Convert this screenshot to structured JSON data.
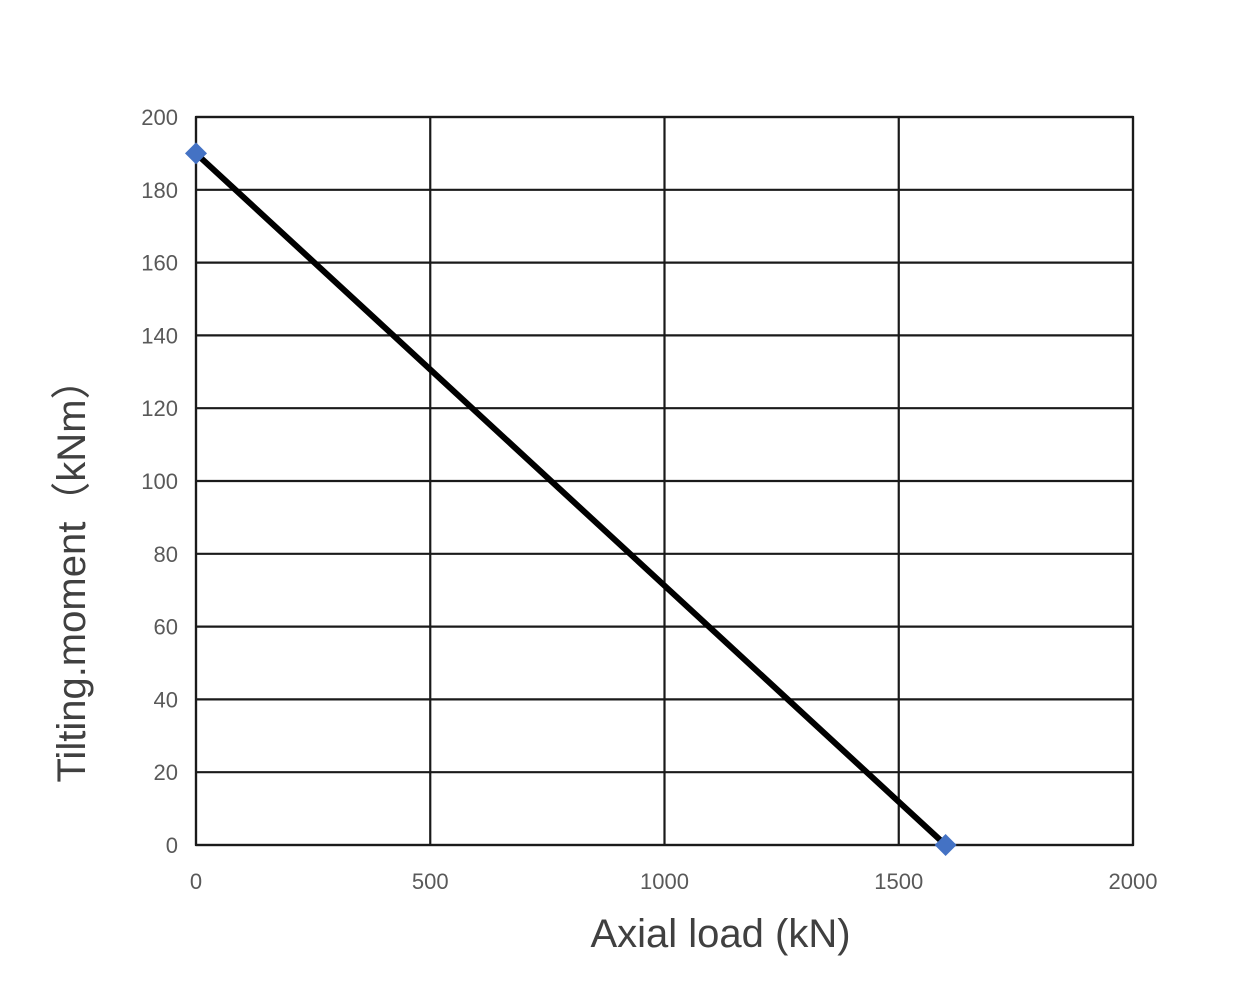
{
  "chart_data": {
    "type": "line",
    "title": "",
    "xlabel": "Axial load (kN)",
    "ylabel": "Tilting.moment（kNm）",
    "xlim": [
      0,
      2000
    ],
    "ylim": [
      0,
      200
    ],
    "x_ticks": [
      0,
      500,
      1000,
      1500,
      2000
    ],
    "y_ticks": [
      0,
      20,
      40,
      60,
      80,
      100,
      120,
      140,
      160,
      180,
      200
    ],
    "x_tick_labels": [
      "0",
      "500",
      "1000",
      "1500",
      "2000"
    ],
    "y_tick_labels": [
      "0",
      "20",
      "40",
      "60",
      "80",
      "100",
      "120",
      "140",
      "160",
      "180",
      "200"
    ],
    "grid": true,
    "legend": "none",
    "series": [
      {
        "x": [
          0,
          1600
        ],
        "y": [
          190,
          0
        ],
        "line_color": "#000000",
        "marker": "diamond",
        "marker_color": "#4472c4"
      }
    ]
  }
}
